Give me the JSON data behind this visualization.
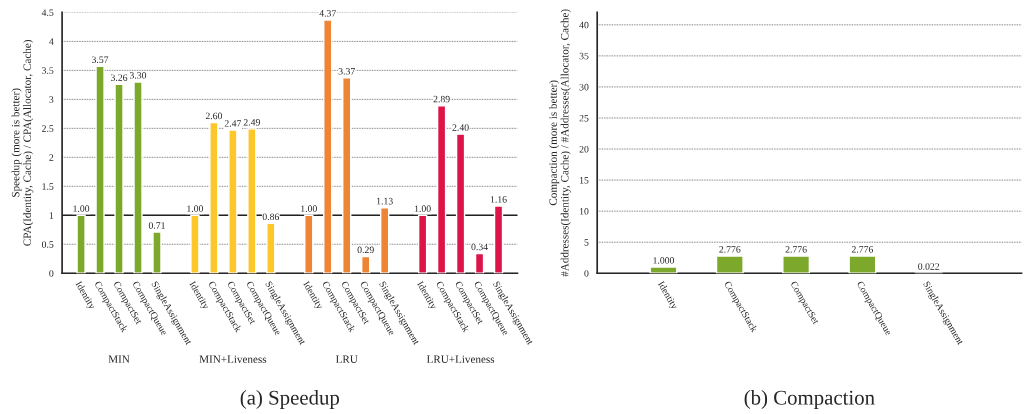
{
  "chart_data": [
    {
      "type": "bar",
      "title": "(a) Speedup",
      "ylabel": "Speedup (more is better)\nCPA(Identity, Cache) / CPA(Allocator, Cache)",
      "categories": [
        "Identity",
        "CompactStack",
        "CompactSet",
        "CompactQueue",
        "SingleAssignment",
        null,
        "Identity",
        "CompactStack",
        "CompactSet",
        "CompactQueue",
        "SingleAssignment",
        null,
        "Identity",
        "CompactStack",
        "CompactSet",
        "CompactQueue",
        "SingleAssignment",
        null,
        "Identity",
        "CompactStack",
        "CompactSet",
        "CompactQueue",
        "SingleAssignment"
      ],
      "values": [
        1.0,
        3.57,
        3.26,
        3.3,
        0.71,
        null,
        1.0,
        2.6,
        2.47,
        2.49,
        0.86,
        null,
        1.0,
        4.37,
        3.37,
        0.29,
        1.13,
        null,
        1.0,
        2.89,
        2.4,
        0.34,
        1.16
      ],
      "value_labels": [
        "1.00",
        "3.57",
        "3.26",
        "3.30",
        "0.71",
        null,
        "1.00",
        "2.60",
        "2.47",
        "2.49",
        "0.86",
        null,
        "1.00",
        "4.37",
        "3.37",
        "0.29",
        "1.13",
        null,
        "1.00",
        "2.89",
        "2.40",
        "0.34",
        "1.16"
      ],
      "colors": [
        "#7ca82b",
        "#7ca82b",
        "#7ca82b",
        "#7ca82b",
        "#7ca82b",
        null,
        "#fcc72a",
        "#fcc72a",
        "#fcc72a",
        "#fcc72a",
        "#fcc72a",
        null,
        "#ee8535",
        "#ee8535",
        "#ee8535",
        "#ee8535",
        "#ee8535",
        null,
        "#dc1448",
        "#dc1448",
        "#dc1448",
        "#dc1448",
        "#dc1448"
      ],
      "annotations": [
        "MIN",
        "MIN+Liveness",
        "LRU",
        "LRU+Liveness"
      ],
      "ref_lines": [
        {
          "axis": "y",
          "value": 1,
          "color": "#222222"
        }
      ],
      "ylim": [
        0,
        4.5
      ],
      "yticks": [
        0,
        0.5,
        1,
        1.5,
        2,
        2.5,
        3,
        3.5,
        4,
        4.5
      ],
      "grid": "y",
      "legend": false
    },
    {
      "type": "bar",
      "title": "(b) Compaction",
      "ylabel": "Compaction (more is better)\n#Addresses(Identity, Cache) / #Addresses(Allocator, Cache)",
      "categories": [
        "Identity",
        "CompactStack",
        "CompactSet",
        "CompactQueue",
        "SingleAssignment"
      ],
      "values": [
        1.0,
        2.776,
        2.776,
        2.776,
        0.022
      ],
      "value_labels": [
        "1.000",
        "2.776",
        "2.776",
        "2.776",
        "0.022"
      ],
      "colors": [
        "#7ca82b",
        "#7ca82b",
        "#7ca82b",
        "#7ca82b",
        "#7ca82b"
      ],
      "ylim": [
        0,
        42
      ],
      "yticks": [
        0,
        5,
        10,
        15,
        20,
        25,
        30,
        35,
        40
      ],
      "grid": "y",
      "legend": false
    }
  ]
}
